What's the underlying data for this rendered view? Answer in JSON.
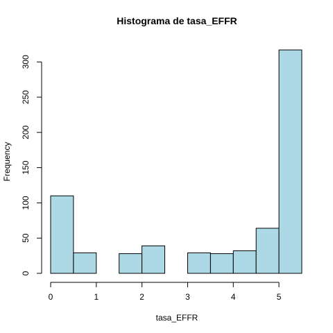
{
  "chart_data": {
    "type": "bar",
    "title": "Histograma de tasa_EFFR",
    "xlabel": "tasa_EFFR",
    "ylabel": "Frequency",
    "bar_color": "#add8e6",
    "border_color": "#000000",
    "bins": [
      {
        "x0": 0.0,
        "x1": 0.5,
        "count": 110
      },
      {
        "x0": 0.5,
        "x1": 1.0,
        "count": 29
      },
      {
        "x0": 1.0,
        "x1": 1.5,
        "count": 0
      },
      {
        "x0": 1.5,
        "x1": 2.0,
        "count": 28
      },
      {
        "x0": 2.0,
        "x1": 2.5,
        "count": 39
      },
      {
        "x0": 2.5,
        "x1": 3.0,
        "count": 0
      },
      {
        "x0": 3.0,
        "x1": 3.5,
        "count": 29
      },
      {
        "x0": 3.5,
        "x1": 4.0,
        "count": 28
      },
      {
        "x0": 4.0,
        "x1": 4.5,
        "count": 32
      },
      {
        "x0": 4.5,
        "x1": 5.0,
        "count": 64
      },
      {
        "x0": 5.0,
        "x1": 5.5,
        "count": 317
      }
    ],
    "xlim": [
      0,
      5.5
    ],
    "ylim": [
      0,
      317
    ],
    "x_ticks": [
      0,
      1,
      2,
      3,
      4,
      5
    ],
    "x_tick_labels": [
      "0",
      "1",
      "2",
      "3",
      "4",
      "5"
    ],
    "y_ticks": [
      0,
      50,
      100,
      150,
      200,
      250,
      300
    ],
    "y_tick_labels": [
      "0",
      "50",
      "100",
      "150",
      "200",
      "250",
      "300"
    ],
    "grid": false,
    "legend": "none"
  }
}
